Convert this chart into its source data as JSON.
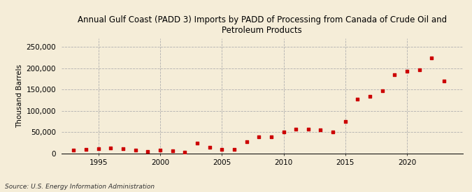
{
  "title": "Annual Gulf Coast (PADD 3) Imports by PADD of Processing from Canada of Crude Oil and\nPetroleum Products",
  "ylabel": "Thousand Barrels",
  "source": "Source: U.S. Energy Information Administration",
  "background_color": "#f5edd8",
  "plot_background_color": "#f5edd8",
  "marker_color": "#cc0000",
  "years": [
    1993,
    1994,
    1995,
    1996,
    1997,
    1998,
    1999,
    2000,
    2001,
    2002,
    2003,
    2004,
    2005,
    2006,
    2007,
    2008,
    2009,
    2010,
    2011,
    2012,
    2013,
    2014,
    2015,
    2016,
    2017,
    2018,
    2019,
    2020,
    2021,
    2022,
    2023
  ],
  "values": [
    8000,
    10000,
    11000,
    13000,
    12000,
    9000,
    5000,
    9000,
    7000,
    3000,
    24000,
    15000,
    10000,
    10000,
    28000,
    40000,
    40000,
    50000,
    57000,
    57000,
    55000,
    50000,
    75000,
    127000,
    135000,
    147000,
    185000,
    193000,
    196000,
    225000,
    170000
  ],
  "xlim": [
    1992,
    2024.5
  ],
  "ylim": [
    0,
    270000
  ],
  "yticks": [
    0,
    50000,
    100000,
    150000,
    200000,
    250000
  ],
  "xticks": [
    1995,
    2000,
    2005,
    2010,
    2015,
    2020
  ],
  "grid_color": "#b0b0b0",
  "title_fontsize": 8.5,
  "tick_fontsize": 7.5,
  "ylabel_fontsize": 7.5,
  "source_fontsize": 6.5
}
